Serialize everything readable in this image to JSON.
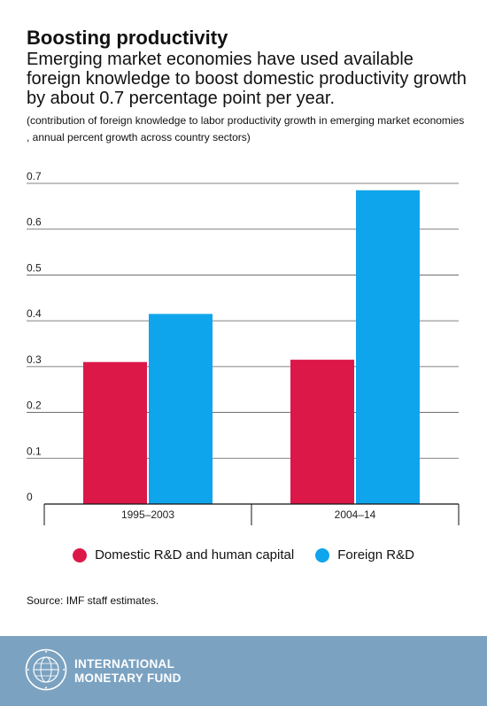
{
  "header": {
    "title": "Boosting productivity",
    "subtitle": "Emerging market economies have used available foreign knowledge to boost domestic productivity growth by about 0.7 percentage point per year.",
    "note": "(contribution of foreign knowledge to labor productivity growth in emerging market economies , annual percent growth across country sectors)"
  },
  "chart_data": {
    "type": "bar",
    "title": "Boosting productivity",
    "categories": [
      "1995–2003",
      "2004–14"
    ],
    "series": [
      {
        "name": "Domestic R&D and human capital",
        "color": "#dc1849",
        "values": [
          0.31,
          0.315
        ]
      },
      {
        "name": "Foreign R&D",
        "color": "#0fa5ec",
        "values": [
          0.415,
          0.685
        ]
      }
    ],
    "yticks": [
      "0",
      "0.1",
      "0.2",
      "0.3",
      "0.4",
      "0.5",
      "0.6",
      "0.7"
    ],
    "ylim": [
      0,
      0.7
    ],
    "xlabel": "",
    "ylabel": "",
    "grid": true,
    "legend_position": "bottom"
  },
  "legend": {
    "items": [
      {
        "label": "Domestic R&D and human capital",
        "color": "#dc1849"
      },
      {
        "label": "Foreign R&D",
        "color": "#0fa5ec"
      }
    ]
  },
  "source": "Source: IMF staff estimates.",
  "footer": {
    "org_line1": "INTERNATIONAL",
    "org_line2": "MONETARY FUND",
    "seal_text": "INTERNATIONAL MONETARY FUND",
    "background": "#7ba2c1"
  }
}
